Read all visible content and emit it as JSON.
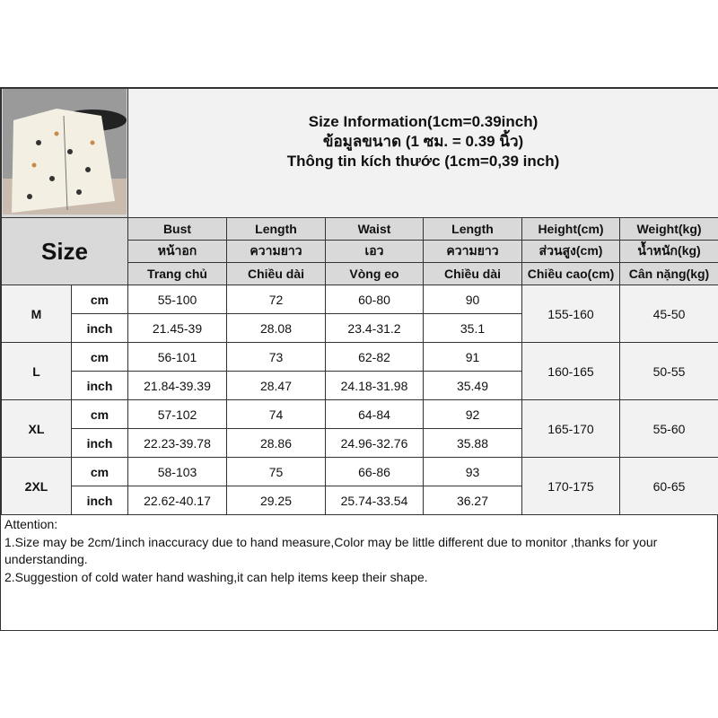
{
  "title": {
    "line1": "Size Information(1cm=0.39inch)",
    "line2": "ข้อมูลขนาด (1 ซม. = 0.39 นิ้ว)",
    "line3": "Thông tin kích thước (1cm=0,39 inch)"
  },
  "size_label": "Size",
  "columns": [
    {
      "en": "Bust",
      "th": "หน้าอก",
      "vi": "Trang chủ"
    },
    {
      "en": "Length",
      "th": "ความยาว",
      "vi": "Chiều dài"
    },
    {
      "en": "Waist",
      "th": "เอว",
      "vi": "Vòng eo"
    },
    {
      "en": "Length",
      "th": "ความยาว",
      "vi": "Chiều dài"
    },
    {
      "en": "Height(cm)",
      "th": "ส่วนสูง(cm)",
      "vi": "Chiều cao(cm)"
    },
    {
      "en": "Weight(kg)",
      "th": "น้ำหนัก(kg)",
      "vi": "Cân nặng(kg)"
    }
  ],
  "rows": [
    {
      "size": "M",
      "cm_label": "cm",
      "inch_label": "inch",
      "cm": [
        "55-100",
        "72",
        "60-80",
        "90"
      ],
      "inch": [
        "21.45-39",
        "28.08",
        "23.4-31.2",
        "35.1"
      ],
      "height": "155-160",
      "weight": "45-50"
    },
    {
      "size": "L",
      "cm_label": "cm",
      "inch_label": "inch",
      "cm": [
        "56-101",
        "73",
        "62-82",
        "91"
      ],
      "inch": [
        "21.84-39.39",
        "28.47",
        "24.18-31.98",
        "35.49"
      ],
      "height": "160-165",
      "weight": "50-55"
    },
    {
      "size": "XL",
      "cm_label": "cm",
      "inch_label": "inch",
      "cm": [
        "57-102",
        "74",
        "64-84",
        "92"
      ],
      "inch": [
        "22.23-39.78",
        "28.86",
        "24.96-32.76",
        "35.88"
      ],
      "height": "165-170",
      "weight": "55-60"
    },
    {
      "size": "2XL",
      "cm_label": "cm",
      "inch_label": "inch",
      "cm": [
        "58-103",
        "75",
        "66-86",
        "93"
      ],
      "inch": [
        "22.62-40.17",
        "29.25",
        "25.74-33.54",
        "36.27"
      ],
      "height": "170-175",
      "weight": "60-65"
    }
  ],
  "attention": {
    "heading": "Attention:",
    "line1": "1.Size may be 2cm/1inch inaccuracy due to hand measure,Color may be little different due to monitor ,thanks for your understanding.",
    "line2": "2.Suggestion of cold water hand washing,it can help items keep their shape."
  }
}
